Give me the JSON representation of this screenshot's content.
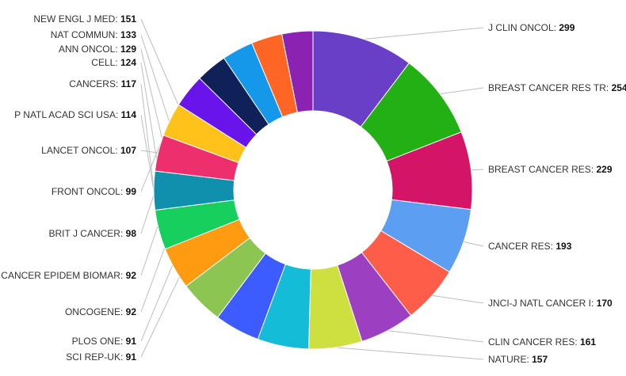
{
  "chart_data": {
    "type": "pie",
    "variant": "donut",
    "title": "",
    "slices": [
      {
        "label": "J CLIN ONCOL",
        "value": 299,
        "color": "#6a3fc8"
      },
      {
        "label": "BREAST CANCER RES TR",
        "value": 254,
        "color": "#22b014"
      },
      {
        "label": "BREAST CANCER RES",
        "value": 229,
        "color": "#d41567"
      },
      {
        "label": "CANCER RES",
        "value": 193,
        "color": "#5c9ef2"
      },
      {
        "label": "JNCI-J NATL CANCER I",
        "value": 170,
        "color": "#fe5d4a"
      },
      {
        "label": "CLIN CANCER RES",
        "value": 161,
        "color": "#9c3fc0"
      },
      {
        "label": "NATURE",
        "value": 157,
        "color": "#cde03f"
      },
      {
        "label": "NEW ENGL J MED",
        "value": 151,
        "color": "#14bcd8"
      },
      {
        "label": "NAT COMMUN",
        "value": 133,
        "color": "#3c5cff"
      },
      {
        "label": "ANN ONCOL",
        "value": 129,
        "color": "#8dc552"
      },
      {
        "label": "CELL",
        "value": 124,
        "color": "#ff9b10"
      },
      {
        "label": "CANCERS",
        "value": 117,
        "color": "#16cf5d"
      },
      {
        "label": "P NATL ACAD SCI USA",
        "value": 114,
        "color": "#1190ae"
      },
      {
        "label": "LANCET ONCOL",
        "value": 107,
        "color": "#ee2f6d"
      },
      {
        "label": "FRONT ONCOL",
        "value": 99,
        "color": "#ffc21a"
      },
      {
        "label": "BRIT J CANCER",
        "value": 98,
        "color": "#6a14ec"
      },
      {
        "label": "CANCER EPIDEM BIOMAR",
        "value": 92,
        "color": "#10215a"
      },
      {
        "label": "ONCOGENE",
        "value": 92,
        "color": "#1597ea"
      },
      {
        "label": "PLOS ONE",
        "value": 91,
        "color": "#ff6525"
      },
      {
        "label": "SCI REP-UK",
        "value": 91,
        "color": "#8c22b2"
      }
    ],
    "legend": "none",
    "label_format": "{label}: {value}"
  }
}
